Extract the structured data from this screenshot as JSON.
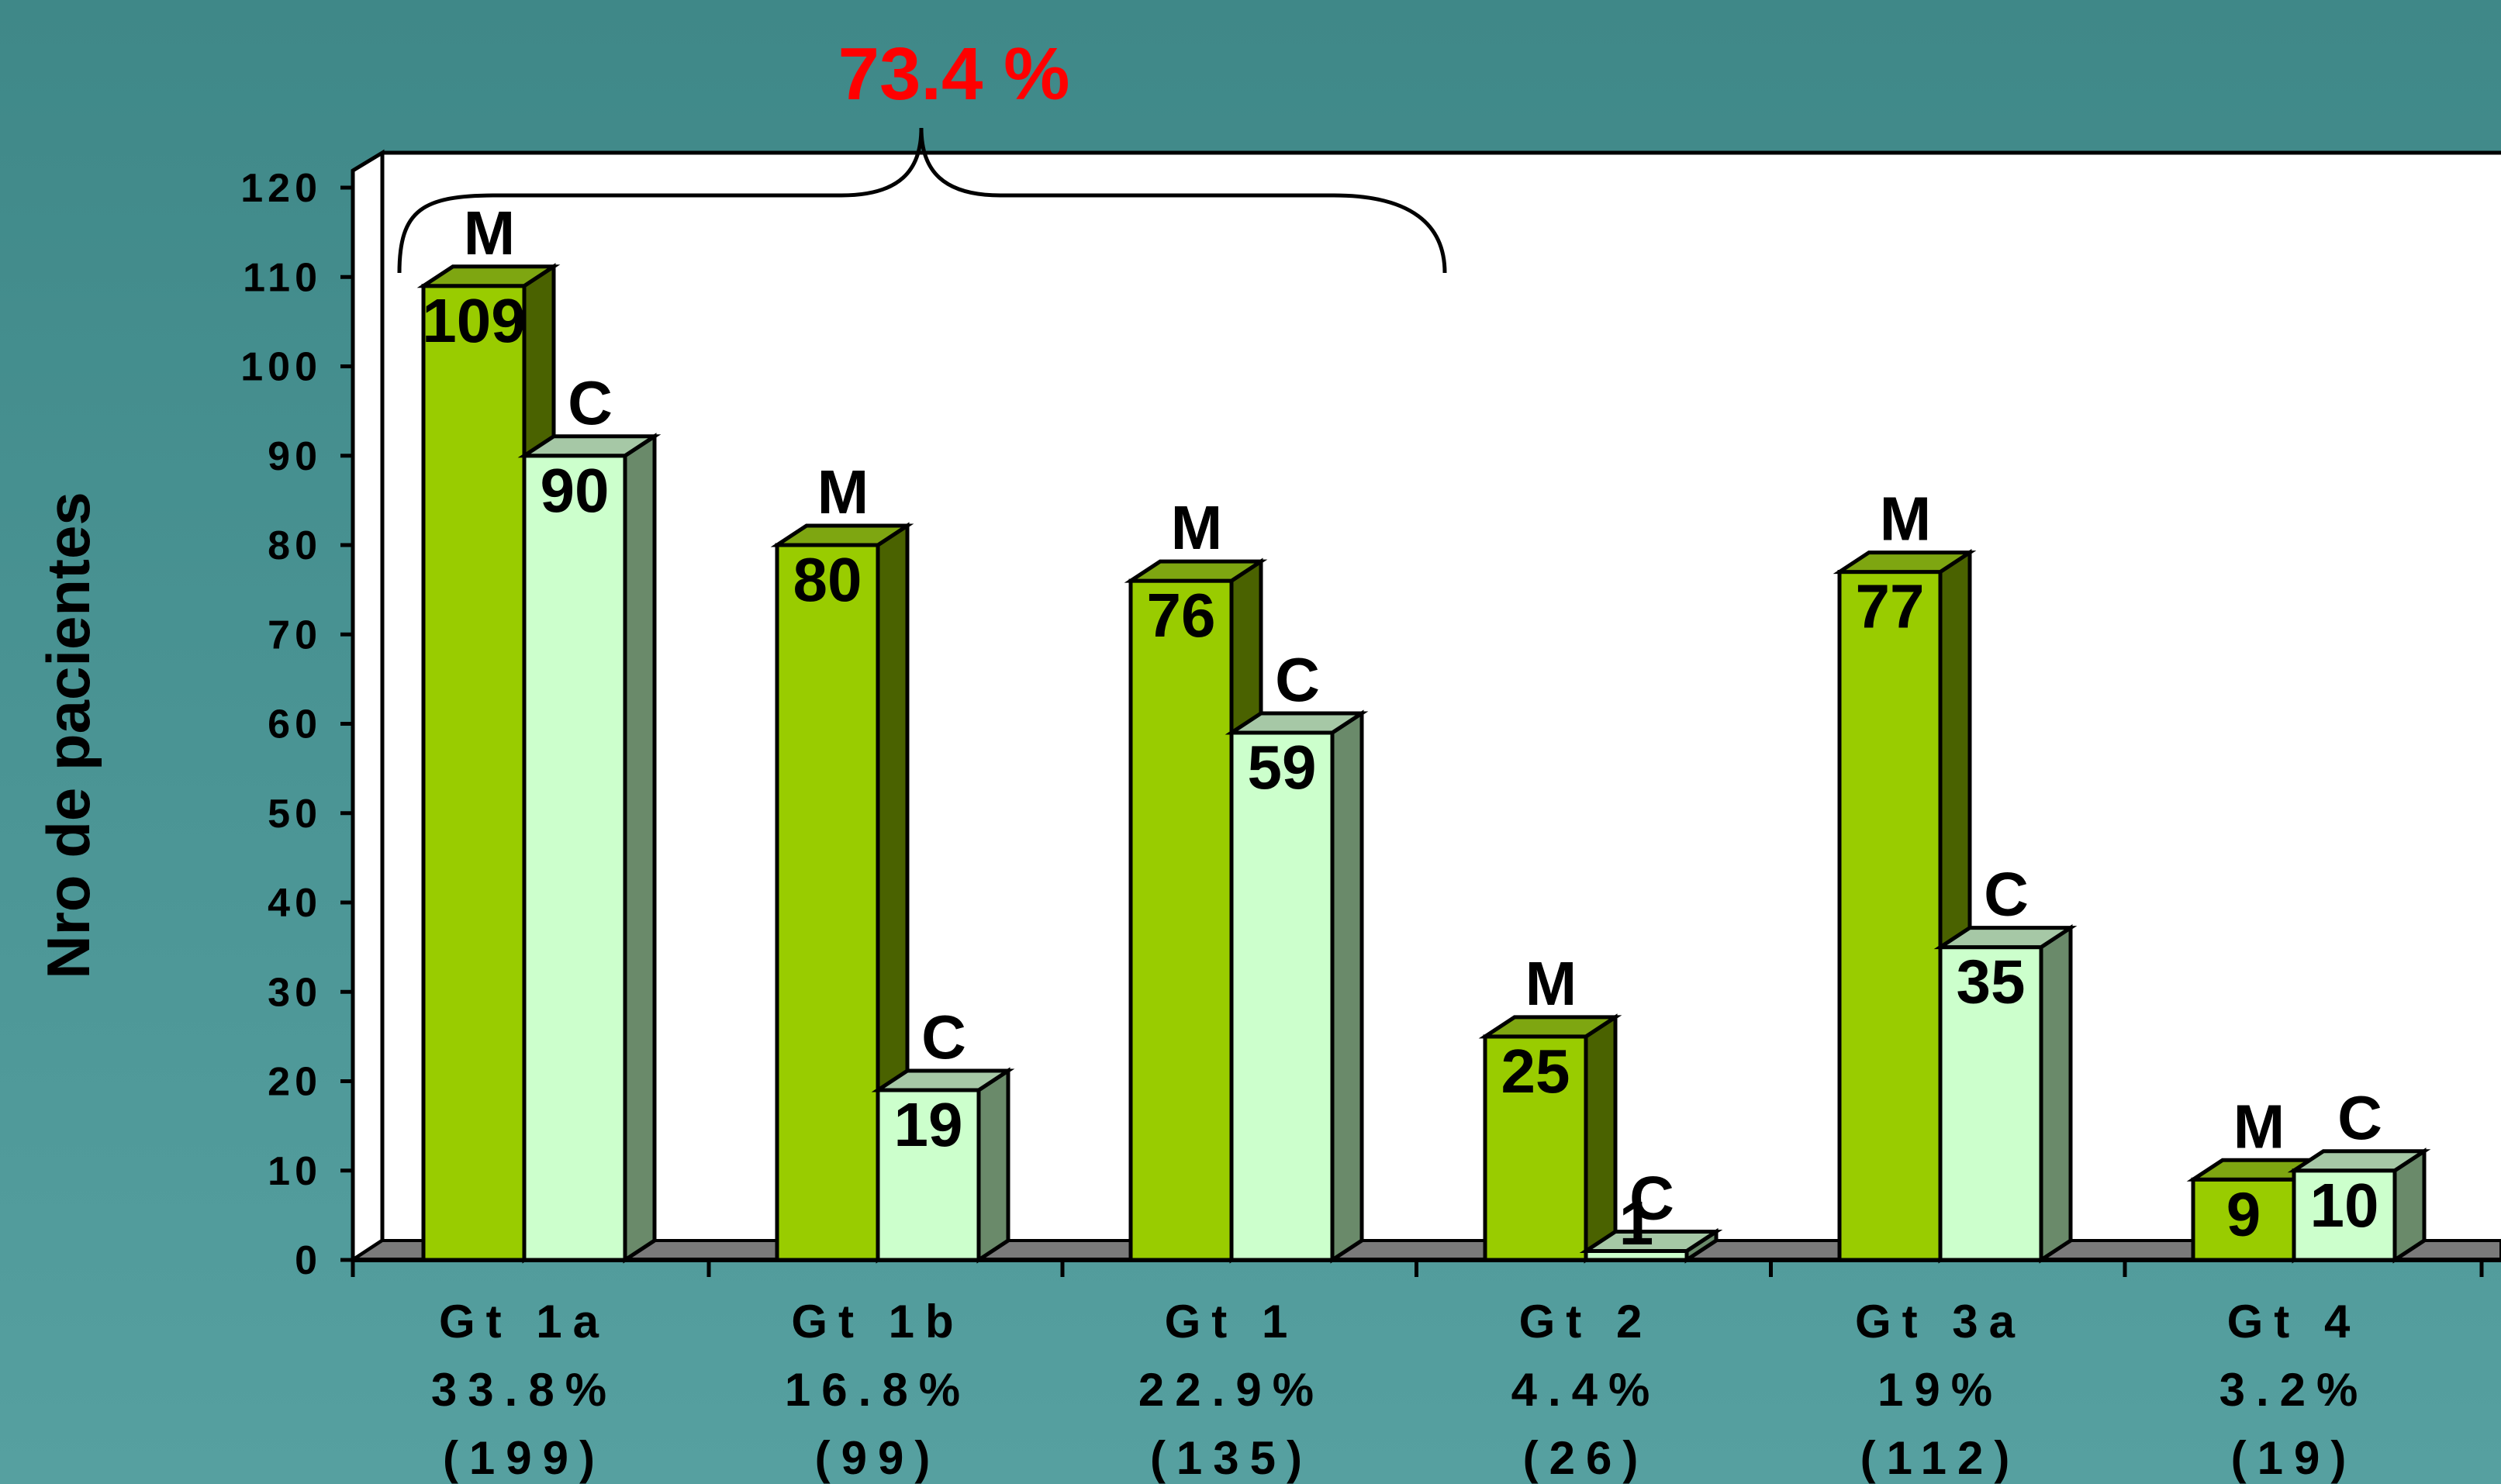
{
  "chart_data": {
    "type": "bar",
    "ylabel": "Nro de pacientes",
    "ylim": [
      0,
      120
    ],
    "yticks": [
      "0",
      "10",
      "20",
      "30",
      "40",
      "50",
      "60",
      "70",
      "80",
      "90",
      "100",
      "110",
      "120"
    ],
    "grid": false,
    "categories": [
      {
        "name": "Gt 1a",
        "percent": "33.8%",
        "count": "(199)"
      },
      {
        "name": "Gt 1b",
        "percent": "16.8%",
        "count": "(99)"
      },
      {
        "name": "Gt 1",
        "percent": "22.9%",
        "count": "(135)"
      },
      {
        "name": "Gt 2",
        "percent": "4.4%",
        "count": "(26)"
      },
      {
        "name": "Gt 3a",
        "percent": "19%",
        "count": "(112)"
      },
      {
        "name": "Gt 4",
        "percent": "3.2%",
        "count": "(19)"
      }
    ],
    "series": [
      {
        "name": "M",
        "values": [
          109,
          80,
          76,
          25,
          77,
          9
        ]
      },
      {
        "name": "C",
        "values": [
          90,
          19,
          59,
          1,
          35,
          10
        ]
      }
    ],
    "annotation": {
      "text": "73.4 %",
      "spans": [
        "Gt 1a",
        "Gt 1b",
        "Gt 1"
      ]
    },
    "colors": {
      "M_front": "#99cc00",
      "M_top": "#7ea611",
      "M_side": "#4a6200",
      "C_front": "#ccffcc",
      "C_top": "#a6c8a6",
      "C_side": "#6a8a6a",
      "annotation": "#ff0000",
      "plot_bg": "#ffffff",
      "floor": "#7a7a7a"
    }
  }
}
